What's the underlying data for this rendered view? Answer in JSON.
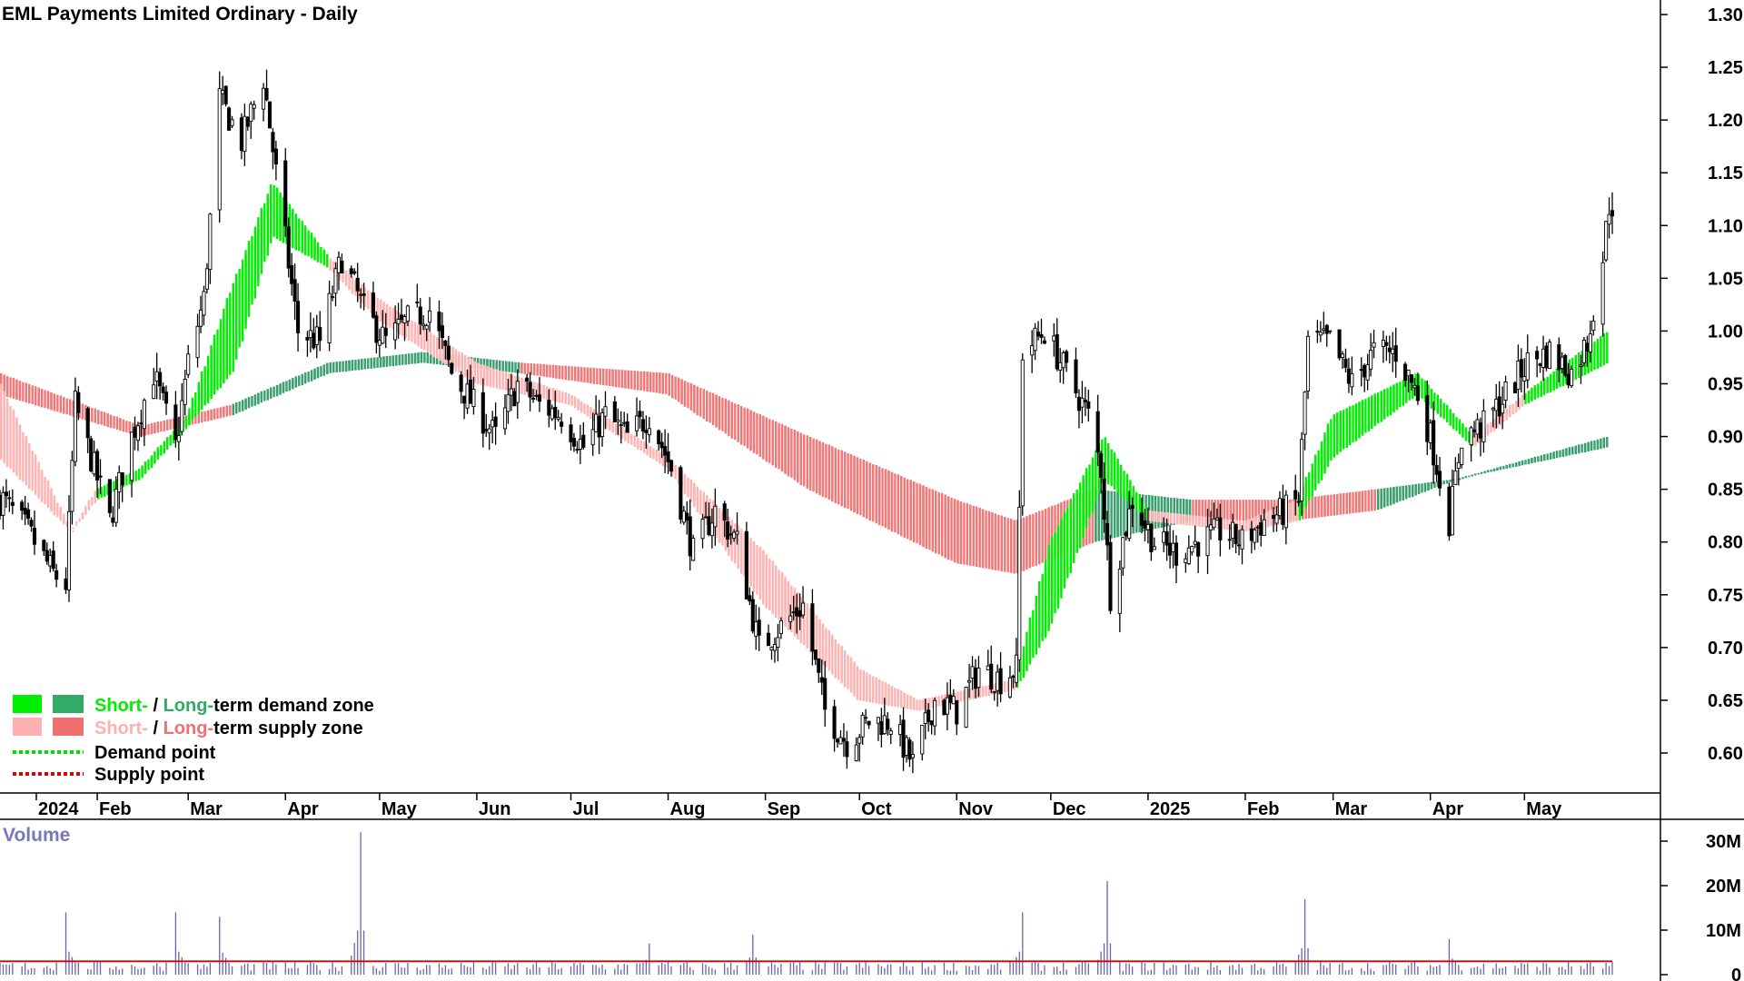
{
  "chart_data": {
    "type": "candlestick",
    "title": "EML Payments Limited Ordinary - Daily",
    "ylim": [
      0.55,
      1.31
    ],
    "yticks": [
      "0.60",
      "0.65",
      "0.70",
      "0.75",
      "0.80",
      "0.85",
      "0.90",
      "0.95",
      "1.00",
      "1.05",
      "1.10",
      "1.15",
      "1.20",
      "1.25",
      "1.30"
    ],
    "xticks": [
      "2024",
      "Feb",
      "Mar",
      "Apr",
      "May",
      "Jun",
      "Jul",
      "Aug",
      "Sep",
      "Oct",
      "Nov",
      "Dec",
      "2025",
      "Feb",
      "Mar",
      "Apr",
      "May"
    ],
    "price_path": [
      [
        "2024-01-02",
        0.84
      ],
      [
        "2024-01-10",
        0.81
      ],
      [
        "2024-01-18",
        0.77
      ],
      [
        "2024-01-22",
        0.76
      ],
      [
        "2024-01-25",
        0.93
      ],
      [
        "2024-01-31",
        0.87
      ],
      [
        "2024-02-05",
        0.82
      ],
      [
        "2024-02-12",
        0.9
      ],
      [
        "2024-02-19",
        0.96
      ],
      [
        "2024-02-26",
        0.89
      ],
      [
        "2024-03-01",
        0.97
      ],
      [
        "2024-03-06",
        1.03
      ],
      [
        "2024-03-11",
        1.22
      ],
      [
        "2024-03-18",
        1.18
      ],
      [
        "2024-03-25",
        1.24
      ],
      [
        "2024-03-29",
        1.15
      ],
      [
        "2024-04-05",
        1.0
      ],
      [
        "2024-04-12",
        0.99
      ],
      [
        "2024-04-19",
        1.07
      ],
      [
        "2024-04-26",
        1.02
      ],
      [
        "2024-05-03",
        0.99
      ],
      [
        "2024-05-10",
        1.01
      ],
      [
        "2024-05-17",
        1.02
      ],
      [
        "2024-05-24",
        0.96
      ],
      [
        "2024-05-31",
        0.93
      ],
      [
        "2024-06-07",
        0.9
      ],
      [
        "2024-06-14",
        0.95
      ],
      [
        "2024-06-21",
        0.93
      ],
      [
        "2024-06-28",
        0.92
      ],
      [
        "2024-07-05",
        0.89
      ],
      [
        "2024-07-12",
        0.92
      ],
      [
        "2024-07-19",
        0.9
      ],
      [
        "2024-07-26",
        0.92
      ],
      [
        "2024-08-02",
        0.87
      ],
      [
        "2024-08-09",
        0.79
      ],
      [
        "2024-08-16",
        0.83
      ],
      [
        "2024-08-23",
        0.8
      ],
      [
        "2024-08-30",
        0.7
      ],
      [
        "2024-09-06",
        0.72
      ],
      [
        "2024-09-13",
        0.74
      ],
      [
        "2024-09-20",
        0.64
      ],
      [
        "2024-09-27",
        0.61
      ],
      [
        "2024-10-04",
        0.63
      ],
      [
        "2024-10-11",
        0.63
      ],
      [
        "2024-10-18",
        0.59
      ],
      [
        "2024-10-25",
        0.65
      ],
      [
        "2024-11-01",
        0.64
      ],
      [
        "2024-11-08",
        0.68
      ],
      [
        "2024-11-15",
        0.67
      ],
      [
        "2024-11-20",
        0.68
      ],
      [
        "2024-11-22",
        0.98
      ],
      [
        "2024-11-29",
        1.0
      ],
      [
        "2024-12-06",
        0.96
      ],
      [
        "2024-12-13",
        0.92
      ],
      [
        "2024-12-17",
        0.87
      ],
      [
        "2024-12-20",
        0.75
      ],
      [
        "2024-12-27",
        0.84
      ],
      [
        "2025-01-03",
        0.8
      ],
      [
        "2025-01-10",
        0.79
      ],
      [
        "2025-01-17",
        0.8
      ],
      [
        "2025-01-24",
        0.81
      ],
      [
        "2025-01-31",
        0.8
      ],
      [
        "2025-02-07",
        0.82
      ],
      [
        "2025-02-14",
        0.83
      ],
      [
        "2025-02-18",
        0.84
      ],
      [
        "2025-02-21",
        0.99
      ],
      [
        "2025-02-28",
        0.99
      ],
      [
        "2025-03-07",
        0.95
      ],
      [
        "2025-03-14",
        0.98
      ],
      [
        "2025-03-21",
        0.98
      ],
      [
        "2025-03-28",
        0.94
      ],
      [
        "2025-04-01",
        0.9
      ],
      [
        "2025-04-07",
        0.82
      ],
      [
        "2025-04-11",
        0.9
      ],
      [
        "2025-04-18",
        0.91
      ],
      [
        "2025-04-25",
        0.94
      ],
      [
        "2025-05-02",
        0.97
      ],
      [
        "2025-05-09",
        0.98
      ],
      [
        "2025-05-16",
        0.96
      ],
      [
        "2025-05-21",
        0.99
      ],
      [
        "2025-05-26",
        1.07
      ],
      [
        "2025-05-28",
        1.12
      ]
    ],
    "zones": {
      "short_term": [
        [
          "2024-01-01",
          0.95,
          0.88,
          "supply"
        ],
        [
          "2024-01-24",
          0.81,
          0.81,
          "supply"
        ],
        [
          "2024-02-01",
          0.85,
          0.84,
          "demand"
        ],
        [
          "2024-02-15",
          0.87,
          0.86,
          "demand"
        ],
        [
          "2024-03-01",
          0.92,
          0.91,
          "demand"
        ],
        [
          "2024-03-15",
          1.04,
          0.96,
          "demand"
        ],
        [
          "2024-03-28",
          1.14,
          1.09,
          "demand"
        ],
        [
          "2024-04-15",
          1.07,
          1.06,
          "supply"
        ],
        [
          "2024-05-01",
          1.03,
          1.01,
          "supply"
        ],
        [
          "2024-06-01",
          0.97,
          0.95,
          "supply"
        ],
        [
          "2024-07-01",
          0.94,
          0.93,
          "supply"
        ],
        [
          "2024-08-01",
          0.88,
          0.87,
          "supply"
        ],
        [
          "2024-09-01",
          0.79,
          0.74,
          "supply"
        ],
        [
          "2024-10-01",
          0.68,
          0.65,
          "supply"
        ],
        [
          "2024-10-20",
          0.65,
          0.64,
          "supply"
        ],
        [
          "2024-11-20",
          0.67,
          0.66,
          "demand"
        ],
        [
          "2024-12-01",
          0.8,
          0.72,
          "demand"
        ],
        [
          "2024-12-18",
          0.9,
          0.86,
          "demand"
        ],
        [
          "2025-01-01",
          0.83,
          0.82,
          "supply"
        ],
        [
          "2025-02-01",
          0.82,
          0.81,
          "supply"
        ],
        [
          "2025-02-18",
          0.84,
          0.82,
          "demand"
        ],
        [
          "2025-03-01",
          0.92,
          0.88,
          "demand"
        ],
        [
          "2025-03-28",
          0.96,
          0.94,
          "demand"
        ],
        [
          "2025-04-15",
          0.9,
          0.89,
          "supply"
        ],
        [
          "2025-05-01",
          0.94,
          0.93,
          "demand"
        ],
        [
          "2025-05-28",
          1.0,
          0.97,
          "demand"
        ]
      ],
      "long_term": [
        [
          "2024-01-01",
          0.96,
          0.94,
          "supply"
        ],
        [
          "2024-02-15",
          0.91,
          0.9,
          "supply"
        ],
        [
          "2024-03-15",
          0.93,
          0.92,
          "demand"
        ],
        [
          "2024-04-15",
          0.97,
          0.96,
          "demand"
        ],
        [
          "2024-05-15",
          0.98,
          0.97,
          "demand"
        ],
        [
          "2024-06-15",
          0.97,
          0.96,
          "supply"
        ],
        [
          "2024-08-01",
          0.96,
          0.94,
          "supply"
        ],
        [
          "2024-09-15",
          0.9,
          0.85,
          "supply"
        ],
        [
          "2024-11-01",
          0.84,
          0.78,
          "supply"
        ],
        [
          "2024-11-20",
          0.82,
          0.77,
          "supply"
        ],
        [
          "2024-12-15",
          0.85,
          0.8,
          "demand"
        ],
        [
          "2025-01-15",
          0.84,
          0.82,
          "supply"
        ],
        [
          "2025-02-15",
          0.84,
          0.82,
          "supply"
        ],
        [
          "2025-03-15",
          0.85,
          0.83,
          "demand"
        ],
        [
          "2025-04-10",
          0.86,
          0.86,
          "demand"
        ],
        [
          "2025-05-28",
          0.9,
          0.89,
          "demand"
        ]
      ]
    },
    "volume": {
      "label": "Volume",
      "yticks": [
        "0",
        "10M",
        "20M",
        "30M"
      ],
      "ylim": [
        0,
        33
      ],
      "spikes": [
        [
          "2024-01-22",
          14
        ],
        [
          "2024-02-26",
          14
        ],
        [
          "2024-03-11",
          13
        ],
        [
          "2024-04-25",
          32
        ],
        [
          "2024-07-26",
          7
        ],
        [
          "2024-08-28",
          9
        ],
        [
          "2024-11-22",
          14
        ],
        [
          "2024-12-19",
          21
        ],
        [
          "2025-02-20",
          17
        ],
        [
          "2025-04-07",
          8
        ]
      ],
      "average": 3
    }
  },
  "legend": [
    {
      "prefix": "Short-",
      "sep": " / ",
      "mid": "Long-",
      "suffix": "term demand zone",
      "short_color": "#00ee00",
      "long_color": "#33aa66"
    },
    {
      "prefix": "Short-",
      "sep": " / ",
      "mid": "Long-",
      "suffix": "term supply zone",
      "short_color": "#ffb0b0",
      "long_color": "#f07070"
    },
    {
      "label": "Demand point",
      "color": "#00dd00"
    },
    {
      "label": "Supply point",
      "color": "#dd0000"
    }
  ],
  "colors": {
    "short_demand": "#00ee00",
    "long_demand": "#3a9e6e",
    "short_supply": "#ffb3b3",
    "long_supply": "#f07878",
    "demand_over": "#ff7a2a",
    "volume_bar": "#6666aa",
    "volume_avg": "#dd0000"
  }
}
